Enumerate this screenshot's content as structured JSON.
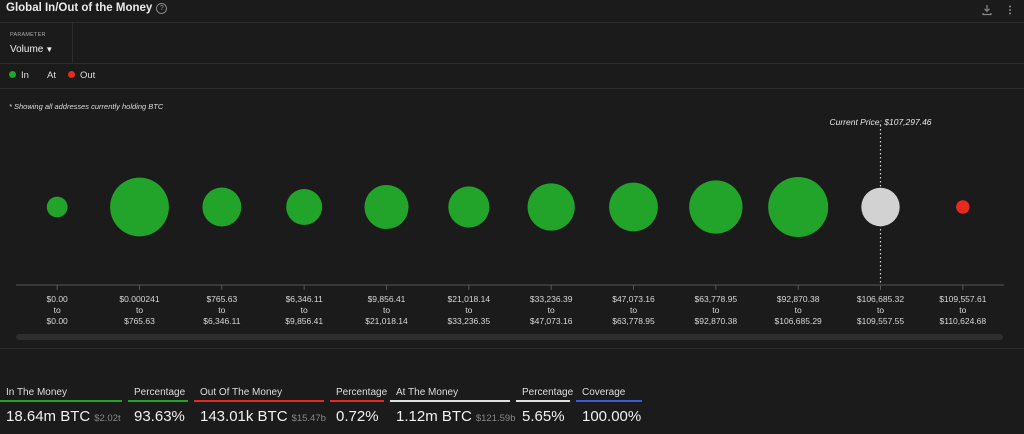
{
  "header": {
    "title": "Global In/Out of the Money",
    "help_icon": "help-circle-icon",
    "download_icon": "download-icon",
    "menu_icon": "more-vertical-icon"
  },
  "parameter": {
    "label": "PARAMETER",
    "value": "Volume"
  },
  "legend": [
    {
      "label": "In",
      "color": "#22a32a"
    },
    {
      "label": "At",
      "color": ""
    },
    {
      "label": "Out",
      "color": "#e8291f"
    }
  ],
  "note": "* Showing all addresses currently holding BTC",
  "chart_data": {
    "type": "scatter",
    "title": "",
    "xlabel": "",
    "ylabel": "",
    "current_price_label": "Current Price: $107,297.46",
    "categories": [
      {
        "from": "$0.00",
        "to_word": "to",
        "to": "$0.00",
        "status": "In",
        "relative_volume": 0.12
      },
      {
        "from": "$0.000241",
        "to_word": "to",
        "to": "$765.63",
        "status": "In",
        "relative_volume": 0.96
      },
      {
        "from": "$765.63",
        "to_word": "to",
        "to": "$6,346.11",
        "status": "In",
        "relative_volume": 0.42
      },
      {
        "from": "$6,346.11",
        "to_word": "to",
        "to": "$9,856.41",
        "status": "In",
        "relative_volume": 0.36
      },
      {
        "from": "$9,856.41",
        "to_word": "to",
        "to": "$21,018.14",
        "status": "In",
        "relative_volume": 0.54
      },
      {
        "from": "$21,018.14",
        "to_word": "to",
        "to": "$33,236.35",
        "status": "In",
        "relative_volume": 0.47
      },
      {
        "from": "$33,236.39",
        "to_word": "to",
        "to": "$47,073.16",
        "status": "In",
        "relative_volume": 0.62
      },
      {
        "from": "$47,073.16",
        "to_word": "to",
        "to": "$63,778.95",
        "status": "In",
        "relative_volume": 0.66
      },
      {
        "from": "$63,778.95",
        "to_word": "to",
        "to": "$92,870.38",
        "status": "In",
        "relative_volume": 0.79
      },
      {
        "from": "$92,870.38",
        "to_word": "to",
        "to": "$106,685.29",
        "status": "In",
        "relative_volume": 1.0
      },
      {
        "from": "$106,685.32",
        "to_word": "to",
        "to": "$109,557.55",
        "status": "At",
        "relative_volume": 0.41
      },
      {
        "from": "$109,557.61",
        "to_word": "to",
        "to": "$110,624.68",
        "status": "Out",
        "relative_volume": 0.05
      }
    ],
    "colors": {
      "In": "#22a32a",
      "At": "#d2d2d2",
      "Out": "#e8291f"
    },
    "grid": false
  },
  "stats": [
    {
      "label": "In The Money",
      "value": "18.64m BTC",
      "sub": "$2.02t",
      "color": "#22a32a"
    },
    {
      "label": "Percentage",
      "value": "93.63%",
      "sub": "",
      "color": "#22a32a"
    },
    {
      "label": "Out Of The Money",
      "value": "143.01k BTC",
      "sub": "$15.47b",
      "color": "#e8291f"
    },
    {
      "label": "Percentage",
      "value": "0.72%",
      "sub": "",
      "color": "#e8291f"
    },
    {
      "label": "At The Money",
      "value": "1.12m BTC",
      "sub": "$121.59b",
      "color": "#e0e0e0"
    },
    {
      "label": "Percentage",
      "value": "5.65%",
      "sub": "",
      "color": "#e0e0e0"
    },
    {
      "label": "Coverage",
      "value": "100.00%",
      "sub": "",
      "color": "#3b5bdb"
    }
  ]
}
